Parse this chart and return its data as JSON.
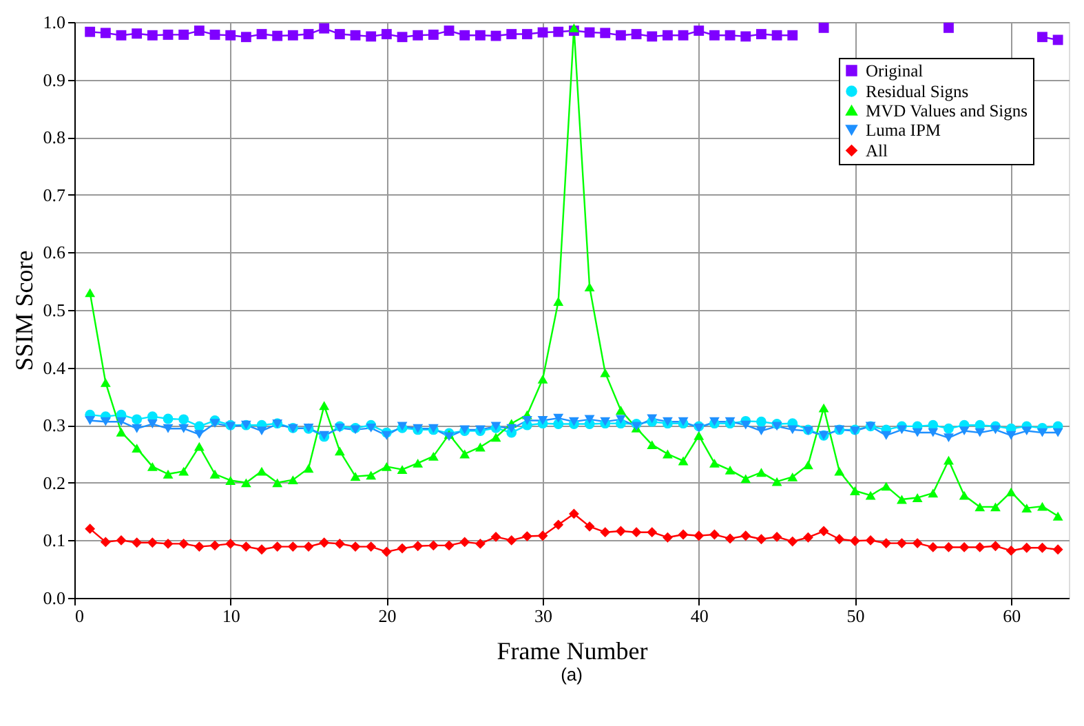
{
  "chart_data": {
    "type": "line",
    "xlabel": "Frame Number",
    "ylabel": "SSIM Score",
    "annotations": [
      "(a)"
    ],
    "x": [
      1,
      2,
      3,
      4,
      5,
      6,
      7,
      8,
      9,
      10,
      11,
      12,
      13,
      14,
      15,
      16,
      17,
      18,
      19,
      20,
      21,
      22,
      23,
      24,
      25,
      26,
      27,
      28,
      29,
      30,
      31,
      32,
      33,
      34,
      35,
      36,
      37,
      38,
      39,
      40,
      41,
      42,
      43,
      44,
      45,
      46,
      47,
      48,
      49,
      50,
      51,
      52,
      53,
      54,
      55,
      56,
      57,
      58,
      59,
      60,
      61,
      62,
      63
    ],
    "xlim": [
      0,
      63.7
    ],
    "xticks": [
      0,
      10,
      20,
      30,
      40,
      50,
      60
    ],
    "ylim": [
      0,
      1
    ],
    "yticks": [
      {
        "value": 0,
        "label": "0.0"
      },
      {
        "value": 0.1,
        "label": "0.1"
      },
      {
        "value": 0.2,
        "label": "0.2"
      },
      {
        "value": 0.3,
        "label": "0.3"
      },
      {
        "value": 0.4,
        "label": "0.4"
      },
      {
        "value": 0.5,
        "label": "0.5"
      },
      {
        "value": 0.6,
        "label": "0.6"
      },
      {
        "value": 0.7,
        "label": "0.7"
      },
      {
        "value": 0.8,
        "label": "0.8"
      },
      {
        "value": 0.9,
        "label": "0.9"
      },
      {
        "value": 1,
        "label": "1.0"
      }
    ],
    "grid": true,
    "legend": "top right",
    "line_style": "solid",
    "series": [
      {
        "name": "Original",
        "color": "#7f00ff",
        "marker": "square",
        "values": [
          0.983,
          0.981,
          0.977,
          0.98,
          0.977,
          0.978,
          0.978,
          0.985,
          0.978,
          0.977,
          0.974,
          0.979,
          0.976,
          0.977,
          0.979,
          0.989,
          0.979,
          0.977,
          0.975,
          0.979,
          0.974,
          0.977,
          0.978,
          0.985,
          0.977,
          0.977,
          0.976,
          0.979,
          0.979,
          0.982,
          0.983,
          0.985,
          0.982,
          0.981,
          0.977,
          0.979,
          0.975,
          0.977,
          0.977,
          0.985,
          0.977,
          0.977,
          0.975,
          0.979,
          0.977,
          0.977,
          null,
          0.99,
          null,
          null,
          null,
          null,
          null,
          null,
          null,
          0.99,
          null,
          null,
          null,
          null,
          null,
          0.974,
          0.969
        ]
      },
      {
        "name": "Residual Signs",
        "color": "#00e5ff",
        "marker": "circle",
        "values": [
          0.318,
          0.315,
          0.318,
          0.31,
          0.315,
          0.311,
          0.31,
          0.298,
          0.308,
          0.3,
          0.3,
          0.3,
          0.303,
          0.295,
          0.294,
          0.28,
          0.298,
          0.295,
          0.3,
          0.287,
          0.295,
          0.292,
          0.292,
          0.286,
          0.29,
          0.29,
          0.295,
          0.287,
          0.3,
          0.303,
          0.302,
          0.302,
          0.302,
          0.303,
          0.303,
          0.302,
          0.306,
          0.303,
          0.303,
          0.298,
          0.303,
          0.303,
          0.307,
          0.306,
          0.302,
          0.303,
          0.292,
          0.282,
          0.292,
          0.292,
          0.298,
          0.292,
          0.298,
          0.298,
          0.3,
          0.294,
          0.3,
          0.3,
          0.298,
          0.294,
          0.298,
          0.295,
          0.298
        ]
      },
      {
        "name": "MVD Values and Signs",
        "color": "#00ff00",
        "marker": "triangle",
        "values": [
          0.53,
          0.374,
          0.288,
          0.26,
          0.228,
          0.215,
          0.22,
          0.263,
          0.215,
          0.204,
          0.2,
          0.22,
          0.2,
          0.205,
          0.225,
          0.334,
          0.255,
          0.211,
          0.213,
          0.228,
          0.223,
          0.234,
          0.246,
          0.284,
          0.25,
          0.262,
          0.279,
          0.303,
          0.318,
          0.38,
          0.515,
          0.99,
          0.54,
          0.391,
          0.326,
          0.295,
          0.266,
          0.25,
          0.238,
          0.282,
          0.234,
          0.222,
          0.207,
          0.218,
          0.202,
          0.21,
          0.231,
          0.33,
          0.22,
          0.186,
          0.178,
          0.194,
          0.171,
          0.174,
          0.182,
          0.239,
          0.178,
          0.158,
          0.158,
          0.184,
          0.156,
          0.159,
          0.142
        ]
      },
      {
        "name": "Luma IPM",
        "color": "#1e90ff",
        "marker": "triangle-down",
        "values": [
          0.308,
          0.306,
          0.306,
          0.294,
          0.302,
          0.294,
          0.294,
          0.284,
          0.303,
          0.298,
          0.3,
          0.29,
          0.302,
          0.294,
          0.295,
          0.282,
          0.295,
          0.292,
          0.295,
          0.282,
          0.298,
          0.294,
          0.294,
          0.28,
          0.292,
          0.292,
          0.298,
          0.294,
          0.308,
          0.308,
          0.312,
          0.306,
          0.31,
          0.306,
          0.31,
          0.298,
          0.311,
          0.306,
          0.306,
          0.295,
          0.306,
          0.306,
          0.3,
          0.29,
          0.298,
          0.292,
          0.29,
          0.282,
          0.292,
          0.29,
          0.298,
          0.282,
          0.292,
          0.287,
          0.287,
          0.278,
          0.29,
          0.287,
          0.292,
          0.282,
          0.29,
          0.287,
          0.287
        ]
      },
      {
        "name": "All",
        "color": "#ff0000",
        "marker": "diamond",
        "values": [
          0.12,
          0.097,
          0.1,
          0.096,
          0.096,
          0.094,
          0.094,
          0.089,
          0.091,
          0.094,
          0.089,
          0.084,
          0.089,
          0.089,
          0.089,
          0.096,
          0.094,
          0.089,
          0.089,
          0.08,
          0.086,
          0.09,
          0.091,
          0.091,
          0.097,
          0.094,
          0.106,
          0.1,
          0.107,
          0.108,
          0.127,
          0.146,
          0.124,
          0.114,
          0.116,
          0.114,
          0.114,
          0.105,
          0.11,
          0.108,
          0.11,
          0.103,
          0.108,
          0.102,
          0.106,
          0.098,
          0.105,
          0.116,
          0.102,
          0.099,
          0.1,
          0.095,
          0.095,
          0.095,
          0.088,
          0.088,
          0.088,
          0.088,
          0.09,
          0.082,
          0.087,
          0.087,
          0.084
        ]
      }
    ]
  }
}
